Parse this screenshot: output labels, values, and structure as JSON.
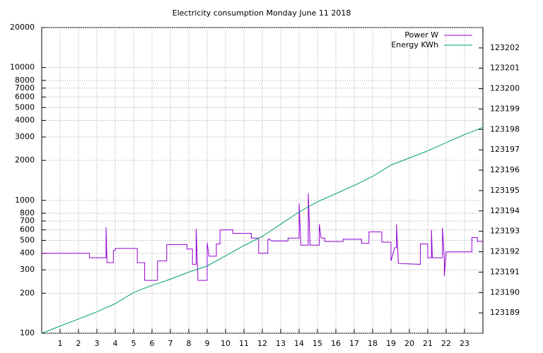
{
  "chart_data": {
    "type": "line",
    "title": "Electricity consumption Monday June 11 2018",
    "xlim": [
      0,
      24
    ],
    "xticks": [
      1,
      2,
      3,
      4,
      5,
      6,
      7,
      8,
      9,
      10,
      11,
      12,
      13,
      14,
      15,
      16,
      17,
      18,
      19,
      20,
      21,
      22,
      23
    ],
    "ylim": [
      100,
      20000
    ],
    "ylog": true,
    "yticks": [
      100,
      200,
      300,
      400,
      500,
      600,
      700,
      800,
      1000,
      2000,
      3000,
      4000,
      5000,
      6000,
      7000,
      8000,
      10000,
      20000
    ],
    "y2lim": [
      123188,
      123203
    ],
    "y2ticks": [
      123189,
      123190,
      123191,
      123192,
      123193,
      123194,
      123195,
      123196,
      123197,
      123198,
      123199,
      123200,
      123201,
      123202
    ],
    "grid": true,
    "legend": "top-right",
    "series": [
      {
        "name": "Power W",
        "color": "#9400d3",
        "x": [
          0,
          2.6,
          2.6,
          3.5,
          3.5,
          3.55,
          3.9,
          3.9,
          4.0,
          4.0,
          5.2,
          5.2,
          5.6,
          5.6,
          6.3,
          6.3,
          6.8,
          6.8,
          7.9,
          7.9,
          8.2,
          8.2,
          8.4,
          8.4,
          8.5,
          9.0,
          9.0,
          9.1,
          9.5,
          9.5,
          9.7,
          9.7,
          10.4,
          10.4,
          11.4,
          11.4,
          11.8,
          11.8,
          12.3,
          12.3,
          12.4,
          12.5,
          13.4,
          13.4,
          14.0,
          14.0,
          14.1,
          14.5,
          14.5,
          14.6,
          15.1,
          15.1,
          15.2,
          15.4,
          15.4,
          16.4,
          16.4,
          17.4,
          17.4,
          17.8,
          17.8,
          18.5,
          18.5,
          19.0,
          19.0,
          19.2,
          19.3,
          19.3,
          19.4,
          20.6,
          20.6,
          21.0,
          21.0,
          21.2,
          21.2,
          21.25,
          21.8,
          21.8,
          21.9,
          21.9,
          22.0,
          23.4,
          23.4,
          23.7,
          23.7,
          24
        ],
        "values": [
          400,
          400,
          370,
          370,
          630,
          340,
          340,
          420,
          420,
          435,
          435,
          340,
          340,
          250,
          250,
          350,
          350,
          465,
          465,
          430,
          430,
          330,
          330,
          610,
          250,
          250,
          480,
          380,
          380,
          470,
          470,
          600,
          600,
          565,
          565,
          520,
          520,
          400,
          400,
          510,
          510,
          495,
          495,
          520,
          520,
          950,
          460,
          460,
          1130,
          460,
          460,
          660,
          520,
          520,
          490,
          490,
          510,
          510,
          475,
          475,
          580,
          580,
          485,
          485,
          350,
          440,
          440,
          660,
          335,
          330,
          470,
          470,
          370,
          370,
          600,
          370,
          370,
          620,
          370,
          270,
          410,
          410,
          525,
          525,
          490,
          490
        ]
      },
      {
        "name": "Energy KWh",
        "color": "#009e73",
        "axis": "y2",
        "x": [
          0,
          1,
          2,
          3,
          4,
          5,
          6,
          7,
          8,
          9,
          10,
          11,
          12,
          13,
          14,
          15,
          16,
          17,
          18,
          19,
          20,
          21,
          22,
          23,
          24
        ],
        "values": [
          123188,
          123188.35,
          123188.7,
          123189.05,
          123189.45,
          123190.0,
          123190.35,
          123190.65,
          123191.0,
          123191.3,
          123191.8,
          123192.3,
          123192.75,
          123193.35,
          123193.95,
          123194.45,
          123194.85,
          123195.25,
          123195.7,
          123196.25,
          123196.6,
          123196.95,
          123197.35,
          123197.75,
          123198.1
        ]
      }
    ]
  }
}
